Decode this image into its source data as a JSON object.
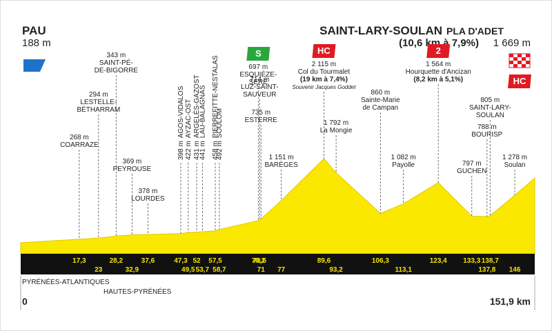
{
  "start": {
    "name": "PAU",
    "altitude": 188,
    "altitude_label": "188 m",
    "km": 0,
    "km_label": "0"
  },
  "finish": {
    "name": "SAINT-LARY-SOULAN",
    "suffix": "PLA D'ADET",
    "climb": "(10,6 km à 7,9%)",
    "altitude": 1669,
    "altitude_label": "1 669 m",
    "km": 151.9,
    "km_label": "151,9 km",
    "badge": "HC"
  },
  "waypoints": [
    {
      "km": 17.3,
      "km_label": "17,3",
      "altitude": 268,
      "altitude_label": "268 m",
      "name": [
        "COARRAZE"
      ]
    },
    {
      "km": 23,
      "km_label": "23",
      "altitude": 294,
      "altitude_label": "294 m",
      "name": [
        "LESTELLE-",
        "BÉTHARRAM"
      ]
    },
    {
      "km": 28.2,
      "km_label": "28,2",
      "altitude": 343,
      "altitude_label": "343 m",
      "name": [
        "SAINT-PÉ-",
        "DE-BIGORRE"
      ]
    },
    {
      "km": 32.9,
      "km_label": "32,9",
      "altitude": 369,
      "altitude_label": "369 m",
      "name": [
        "PEYROUSE"
      ]
    },
    {
      "km": 37.6,
      "km_label": "37,6",
      "altitude": 378,
      "altitude_label": "378 m",
      "name": [
        "LOURDES"
      ]
    },
    {
      "km": 47.3,
      "km_label": "47,3",
      "altitude": 398,
      "altitude_label": "398 m",
      "name": [
        "AGOS-VIDALOS"
      ]
    },
    {
      "km": 49.5,
      "km_label": "49,5",
      "altitude": 422,
      "altitude_label": "422 m",
      "name": [
        "AYZAC-OST"
      ]
    },
    {
      "km": 52,
      "km_label": "52",
      "altitude": 431,
      "altitude_label": "431 m",
      "name": [
        "ARGELÈS-GAZOST"
      ]
    },
    {
      "km": 53.7,
      "km_label": "53,7",
      "altitude": 441,
      "altitude_label": "441 m",
      "name": [
        "LAU-BALAGNAS"
      ]
    },
    {
      "km": 57.5,
      "km_label": "57,5",
      "altitude": 458,
      "altitude_label": "458 m",
      "name": [
        "PIERREFITTE-NESTALAS"
      ]
    },
    {
      "km": 58.7,
      "km_label": "58,7",
      "altitude": 492,
      "altitude_label": "492 m",
      "name": [
        "SOULOM"
      ]
    },
    {
      "km": 70.2,
      "km_label": "70,2",
      "altitude": 697,
      "altitude_label": "697 m",
      "name": [
        "ESQUIÈZE-",
        "SERE"
      ],
      "badge": "S"
    },
    {
      "km": 70.6,
      "km_label": "70,6",
      "altitude": 714,
      "altitude_label": "714 m",
      "name": [
        "LUZ-SAINT-",
        "SAUVEUR"
      ]
    },
    {
      "km": 71,
      "km_label": "71",
      "altitude": 735,
      "altitude_label": "735 m",
      "name": [
        "ESTERRE"
      ]
    },
    {
      "km": 77,
      "km_label": "77",
      "altitude": 1151,
      "altitude_label": "1 151 m",
      "name": [
        "BARÈGES"
      ]
    },
    {
      "km": 89.6,
      "km_label": "89,6",
      "altitude": 2115,
      "altitude_label": "2 115 m",
      "name": [
        "Col du Tourmalet"
      ],
      "climb": "(19 km à 7,4%)",
      "note": "Souvenir Jacques Goddet",
      "badge": "HC"
    },
    {
      "km": 93.2,
      "km_label": "93,2",
      "altitude": 1792,
      "altitude_label": "1 792 m",
      "name": [
        "La Mongie"
      ]
    },
    {
      "km": 106.3,
      "km_label": "106,3",
      "altitude": 860,
      "altitude_label": "860 m",
      "name": [
        "Sainte-Marie",
        "de Campan"
      ]
    },
    {
      "km": 113.1,
      "km_label": "113,1",
      "altitude": 1082,
      "altitude_label": "1 082 m",
      "name": [
        "Payolle"
      ]
    },
    {
      "km": 123.4,
      "km_label": "123,4",
      "altitude": 1564,
      "altitude_label": "1 564 m",
      "name": [
        "Hourquette d'Ancizan"
      ],
      "climb": "(8,2 km à 5,1%)",
      "badge": "2"
    },
    {
      "km": 133.3,
      "km_label": "133,3",
      "altitude": 797,
      "altitude_label": "797 m",
      "name": [
        "GUCHEN"
      ]
    },
    {
      "km": 137.8,
      "km_label": "137,8",
      "altitude": 788,
      "altitude_label": "788 m",
      "name": [
        "BOURISP"
      ]
    },
    {
      "km": 138.7,
      "km_label": "138,7",
      "altitude": 805,
      "altitude_label": "805 m",
      "name": [
        "SAINT-LARY-",
        "SOULAN"
      ]
    },
    {
      "km": 146,
      "km_label": "146",
      "altitude": 1278,
      "altitude_label": "1 278 m",
      "name": [
        "Soulan"
      ]
    }
  ],
  "departments": [
    "PYRÉNÉES-ATLANTIQUES",
    "HAUTES-PYRÉNÉES"
  ]
}
